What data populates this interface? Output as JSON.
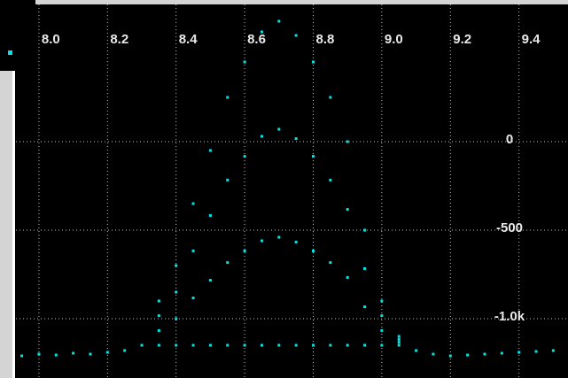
{
  "chart_data": {
    "type": "scatter",
    "color": "#00e5e5",
    "grid": true,
    "xlim": [
      7.933,
      9.543
    ],
    "ylim": [
      -1335,
      800
    ],
    "xticks": [
      {
        "value": 8,
        "label": "8.0"
      },
      8.2,
      8.4,
      8.6,
      8.8,
      {
        "value": 9,
        "label": "9.0"
      },
      9.2,
      9.4
    ],
    "yticks": [
      0,
      -500,
      {
        "value": -1000,
        "label": "-1.0k"
      }
    ],
    "x": [
      7.95,
      8.0,
      8.05,
      8.1,
      8.15,
      8.2,
      8.25,
      8.3,
      8.35,
      8.35,
      8.35,
      8.35,
      8.4,
      8.4,
      8.4,
      8.4,
      8.45,
      8.45,
      8.45,
      8.45,
      8.5,
      8.5,
      8.5,
      8.5,
      8.55,
      8.55,
      8.55,
      8.55,
      8.6,
      8.6,
      8.6,
      8.6,
      8.65,
      8.65,
      8.65,
      8.65,
      8.7,
      8.7,
      8.7,
      8.7,
      8.75,
      8.75,
      8.75,
      8.75,
      8.8,
      8.8,
      8.8,
      8.8,
      8.85,
      8.85,
      8.85,
      8.85,
      8.9,
      8.9,
      8.9,
      8.9,
      8.95,
      8.95,
      8.95,
      8.95,
      9.0,
      9.0,
      9.0,
      9.0,
      9.05,
      9.05,
      9.05,
      9.05,
      9.1,
      9.15,
      9.2,
      9.25,
      9.3,
      9.35,
      9.4,
      9.45,
      9.5
    ],
    "values": [
      -1210,
      -1200,
      -1205,
      -1195,
      -1200,
      -1190,
      -1180,
      -1150,
      -900,
      -983,
      -1067,
      -1150,
      -700,
      -850,
      -1000,
      -1150,
      -350,
      -617,
      -883,
      -1150,
      -50,
      -417,
      -783,
      -1150,
      250,
      -217,
      -683,
      -1150,
      450,
      -83,
      -617,
      -1150,
      620,
      30,
      -560,
      -1150,
      680,
      70,
      -540,
      -1150,
      600,
      17,
      -567,
      -1150,
      450,
      -83,
      -617,
      -1150,
      250,
      -217,
      -683,
      -1150,
      0,
      -383,
      -767,
      -1150,
      -500,
      -717,
      -933,
      -1150,
      -900,
      -983,
      -1067,
      -1150,
      -1100,
      -1117,
      -1133,
      -1150,
      -1180,
      -1200,
      -1210,
      -1205,
      -1200,
      -1195,
      -1190,
      -1185,
      -1180
    ]
  }
}
